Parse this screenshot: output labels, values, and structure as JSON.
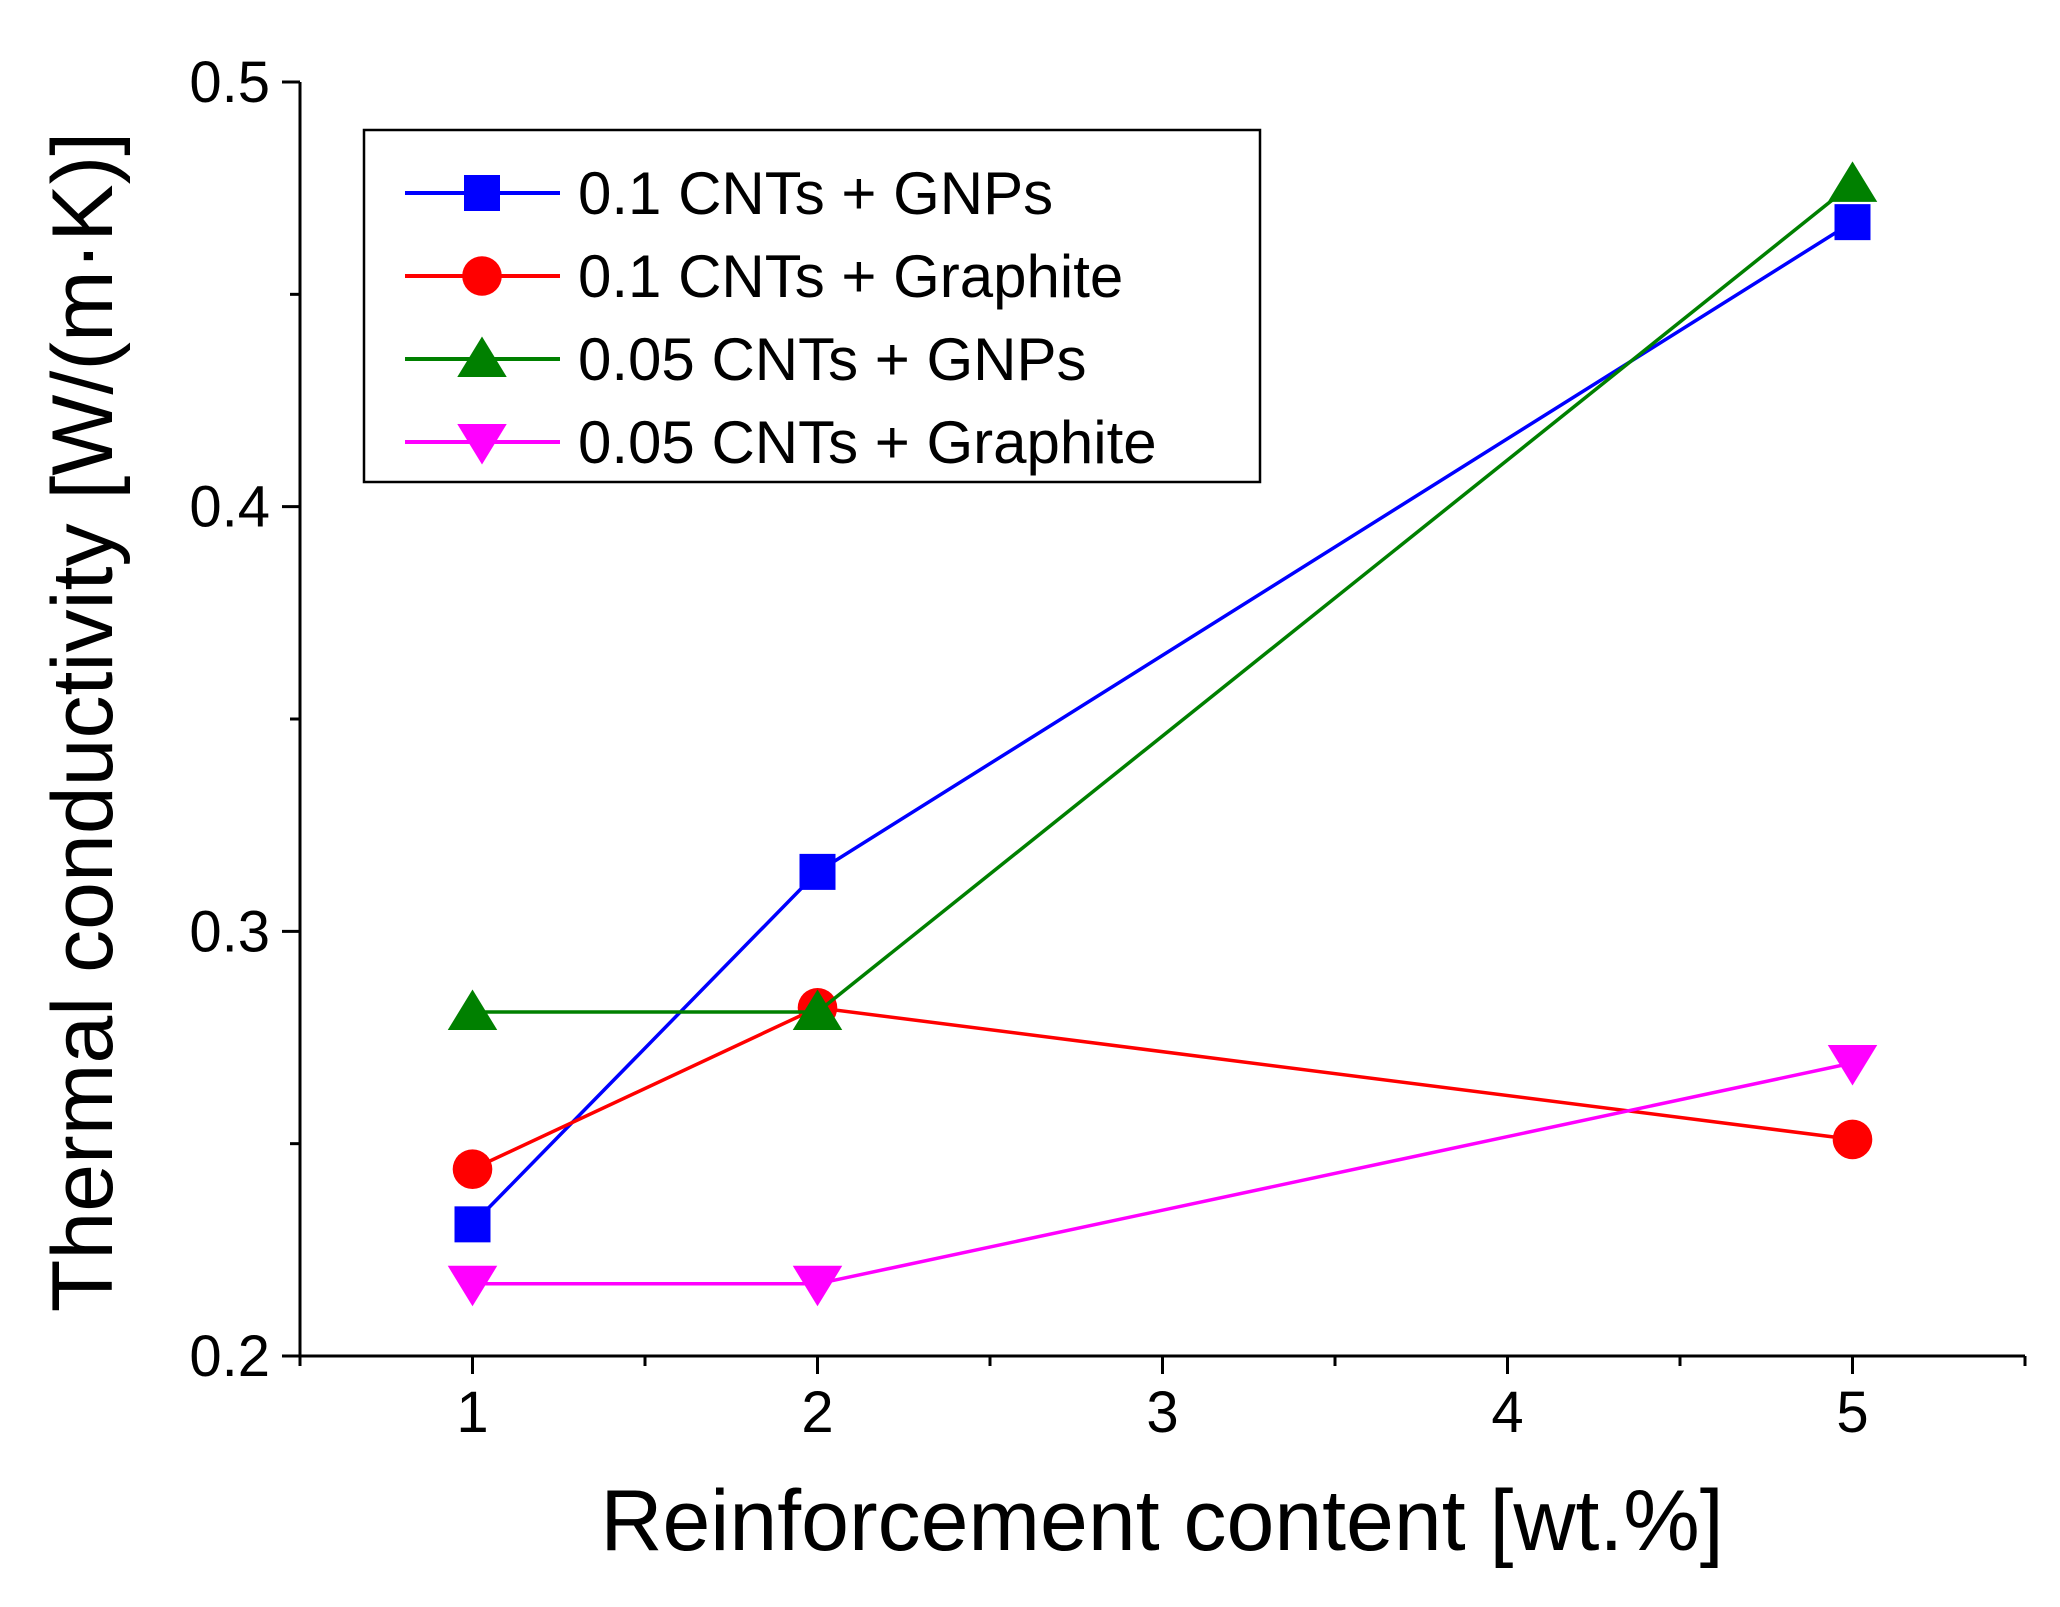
{
  "chart_data": {
    "type": "line",
    "title": "",
    "xlabel": "Reinforcement content [wt.%]",
    "ylabel": "Thermal conductivity [W/(m·K)]",
    "xlim": [
      0.5,
      5.5
    ],
    "ylim": [
      0.2,
      0.5
    ],
    "xticks": [
      1,
      2,
      3,
      4,
      5
    ],
    "xtick_labels": [
      "1",
      "2",
      "3",
      "4",
      "5"
    ],
    "yticks": [
      0.2,
      0.3,
      0.4,
      0.5
    ],
    "ytick_labels": [
      "0.2",
      "0.3",
      "0.4",
      "0.5"
    ],
    "grid": false,
    "legend_position": "top-left",
    "x": [
      1,
      2,
      5
    ],
    "series": [
      {
        "name": "0.1 CNTs + GNPs",
        "values": [
          0.231,
          0.314,
          0.467
        ],
        "color": "#0000ff",
        "marker": "square"
      },
      {
        "name": "0.1 CNTs + Graphite",
        "values": [
          0.244,
          0.282,
          0.251
        ],
        "color": "#ff0000",
        "marker": "circle"
      },
      {
        "name": "0.05 CNTs + GNPs",
        "values": [
          0.281,
          0.281,
          0.476
        ],
        "color": "#008000",
        "marker": "triangle-up"
      },
      {
        "name": "0.05 CNTs + Graphite",
        "values": [
          0.217,
          0.217,
          0.269
        ],
        "color": "#ff00ff",
        "marker": "triangle-down"
      }
    ]
  }
}
